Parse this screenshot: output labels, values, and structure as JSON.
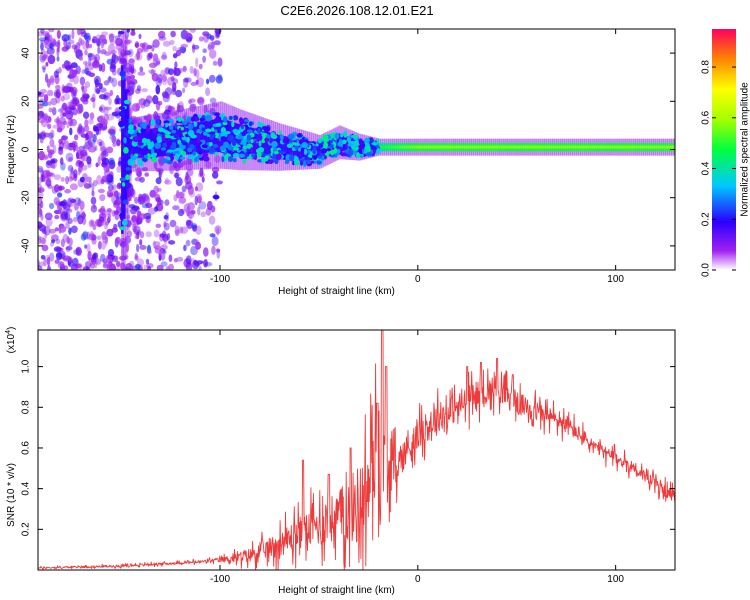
{
  "title": "C2E6.2026.108.12.01.E21",
  "colors": {
    "snr_line": "#ee3a3a",
    "spectrogram_sparse": "#7a1cf0",
    "spectrogram_core": "#2a2aff"
  },
  "chart_data": [
    {
      "type": "heatmap",
      "name": "spectrogram",
      "xlabel": "Height of straight line (km)",
      "ylabel": "Frequency (Hz)",
      "xlim": [
        -192,
        130
      ],
      "ylim": [
        -50,
        50
      ],
      "x_ticks": [
        -100,
        0,
        100
      ],
      "x_tick_labels": [
        "-100",
        "0",
        "100"
      ],
      "y_ticks": [
        -40,
        -20,
        0,
        20,
        40
      ],
      "y_tick_labels": [
        "-40",
        "-20",
        "0",
        "20",
        "40"
      ],
      "colorbar": {
        "label": "Normalized spectral amplitude",
        "range": [
          0.0,
          0.95
        ],
        "ticks": [
          0.0,
          0.2,
          0.4,
          0.6,
          0.8
        ],
        "tick_labels": [
          "0.0",
          "0.2",
          "0.4",
          "0.6",
          "0.8"
        ]
      },
      "band_profile": {
        "heights": [
          -192,
          -150,
          -145,
          -120,
          -100,
          -90,
          -70,
          -50,
          -40,
          -30,
          -20,
          0,
          20,
          60,
          100,
          130
        ],
        "center_hz": [
          0,
          0,
          2,
          4,
          6,
          4,
          1,
          -1,
          3,
          1,
          1,
          1,
          1,
          1,
          1,
          1
        ],
        "half_width_hz": [
          50,
          50,
          8,
          9,
          10,
          9,
          7,
          5,
          5,
          4,
          2.5,
          2.5,
          2.5,
          2.5,
          2.5,
          2.5
        ],
        "peak_amplitude": [
          0.22,
          0.22,
          0.3,
          0.4,
          0.48,
          0.5,
          0.52,
          0.5,
          0.55,
          0.62,
          0.5,
          0.6,
          0.6,
          0.6,
          0.6,
          0.6
        ]
      }
    },
    {
      "type": "line",
      "name": "snr",
      "xlabel": "Height of straight line (km)",
      "ylabel": "SNR (10 * v/v)",
      "scale_label": "(x10^4)",
      "xlim": [
        -192,
        130
      ],
      "ylim": [
        0.0,
        1.18
      ],
      "x_ticks": [
        -100,
        0,
        100
      ],
      "x_tick_labels": [
        "-100",
        "0",
        "100"
      ],
      "y_ticks": [
        0.2,
        0.4,
        0.6,
        0.8,
        1.0
      ],
      "y_tick_labels": [
        "0.2",
        "0.4",
        "0.6",
        "0.8",
        "1.0"
      ],
      "envelope": {
        "x": [
          -192,
          -150,
          -130,
          -110,
          -100,
          -90,
          -80,
          -70,
          -60,
          -50,
          -40,
          -30,
          -25,
          -22,
          -20,
          -18,
          -16,
          -14,
          -10,
          -5,
          0,
          10,
          20,
          30,
          40,
          50,
          60,
          70,
          80,
          90,
          100,
          110,
          120,
          130
        ],
        "y": [
          0.01,
          0.02,
          0.03,
          0.04,
          0.05,
          0.06,
          0.09,
          0.13,
          0.18,
          0.22,
          0.27,
          0.32,
          0.4,
          0.55,
          0.62,
          0.57,
          0.5,
          0.48,
          0.52,
          0.6,
          0.66,
          0.75,
          0.8,
          0.86,
          0.9,
          0.82,
          0.78,
          0.74,
          0.68,
          0.6,
          0.55,
          0.5,
          0.42,
          0.36
        ]
      },
      "noise_amplitude": {
        "x": [
          -192,
          -120,
          -100,
          -80,
          -60,
          -40,
          -30,
          -20,
          -15,
          -10,
          0,
          20,
          40,
          60,
          80,
          100,
          130
        ],
        "y": [
          0.004,
          0.006,
          0.01,
          0.04,
          0.08,
          0.12,
          0.2,
          0.22,
          0.12,
          0.08,
          0.07,
          0.07,
          0.06,
          0.05,
          0.04,
          0.03,
          0.03
        ]
      },
      "spikes": [
        {
          "x": -58.0,
          "y": 0.54
        },
        {
          "x": -45.0,
          "y": 0.47
        },
        {
          "x": -34.0,
          "y": 0.6
        },
        {
          "x": -20.5,
          "y": 0.82
        },
        {
          "x": -18.0,
          "y": 1.18
        },
        {
          "x": -16.0,
          "y": 1.0
        },
        {
          "x": 25.0,
          "y": 1.0
        },
        {
          "x": 32.0,
          "y": 1.02
        },
        {
          "x": 40.0,
          "y": 1.04
        },
        {
          "x": 48.0,
          "y": 0.96
        }
      ]
    }
  ]
}
